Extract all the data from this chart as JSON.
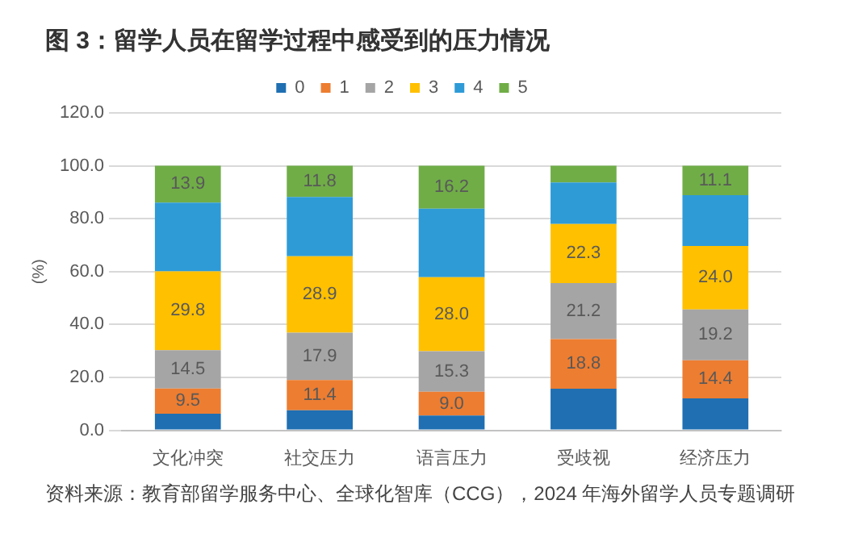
{
  "chart_data": {
    "type": "bar",
    "title": "图 3：留学人员在留学过程中感受到的压力情况",
    "ylabel": "(%)",
    "categories": [
      "文化冲突",
      "社交压力",
      "语言压力",
      "受歧视",
      "经济压力"
    ],
    "stacked": true,
    "series": [
      {
        "name": "0",
        "color": "#1f6fb2",
        "values": [
          6.3,
          7.6,
          5.6,
          15.7,
          12.1
        ],
        "value_labels": [
          null,
          null,
          null,
          null,
          null
        ]
      },
      {
        "name": "1",
        "color": "#ed7d31",
        "values": [
          9.5,
          11.4,
          9.0,
          18.8,
          14.4
        ],
        "value_labels": [
          "9.5",
          "11.4",
          "9.0",
          "18.8",
          "14.4"
        ]
      },
      {
        "name": "2",
        "color": "#a5a5a5",
        "values": [
          14.5,
          17.9,
          15.3,
          21.2,
          19.2
        ],
        "value_labels": [
          "14.5",
          "17.9",
          "15.3",
          "21.2",
          "19.2"
        ]
      },
      {
        "name": "3",
        "color": "#ffc000",
        "values": [
          29.8,
          28.9,
          28.0,
          22.3,
          24.0
        ],
        "value_labels": [
          "29.8",
          "28.9",
          "28.0",
          "22.3",
          "24.0"
        ]
      },
      {
        "name": "4",
        "color": "#2e9bd6",
        "values": [
          26.0,
          22.4,
          25.9,
          15.7,
          19.2
        ],
        "value_labels": [
          null,
          null,
          null,
          null,
          null
        ]
      },
      {
        "name": "5",
        "color": "#70ad47",
        "values": [
          13.9,
          11.8,
          16.2,
          6.3,
          11.1
        ],
        "value_labels": [
          "13.9",
          "11.8",
          "16.2",
          null,
          "11.1"
        ]
      }
    ],
    "ylim": [
      0,
      120
    ],
    "yticks": [
      {
        "value": 0,
        "label": "0.0"
      },
      {
        "value": 20,
        "label": "20.0"
      },
      {
        "value": 40,
        "label": "40.0"
      },
      {
        "value": 60,
        "label": "60.0"
      },
      {
        "value": 80,
        "label": "80.0"
      },
      {
        "value": 100,
        "label": "100.0"
      },
      {
        "value": 120,
        "label": "120.0"
      }
    ],
    "grid": "y",
    "legend": "top",
    "annotations": [
      "资料来源：教育部留学服务中心、全球化智库（CCG），2024 年海外留学人员专题调研"
    ]
  }
}
